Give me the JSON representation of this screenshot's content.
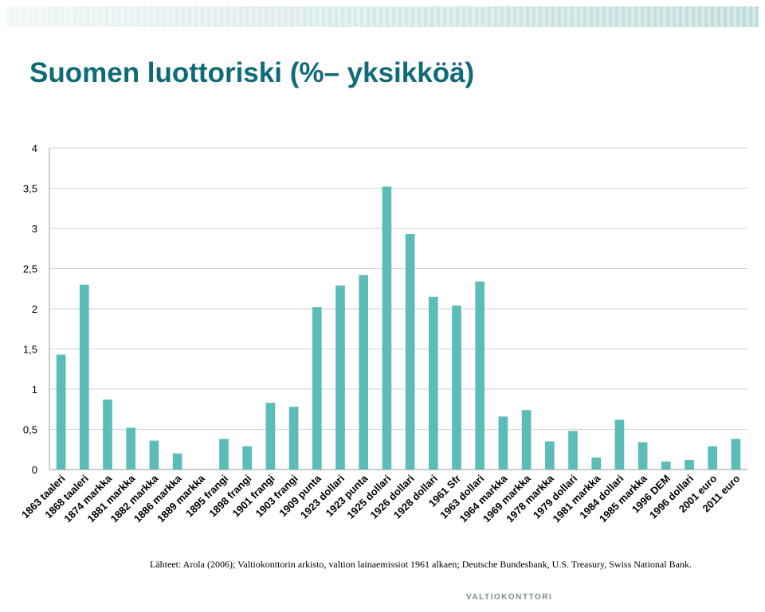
{
  "title": "Suomen luottoriski (%– yksikköä)",
  "source": "Lähteet: Arola (2006); Valtiokonttorin arkisto, valtion lainaemissiot 1961 alkaen; Deutsche Bundesbank, U.S. Treasury, Swiss National Bank.",
  "logo_text": "VALTIOKONTTORI",
  "colors": {
    "title": "#0f6b78",
    "bar": "#5bbcb8",
    "grid": "#d2d2d2",
    "band_light": "#e8f2f2",
    "band_dark": "#c4dedd"
  },
  "chart_data": {
    "type": "bar",
    "title": "",
    "xlabel": "",
    "ylabel": "",
    "ylim": [
      0,
      4
    ],
    "yticks": [
      "0",
      "0,5",
      "1",
      "1,5",
      "2",
      "2,5",
      "3",
      "3,5",
      "4"
    ],
    "grid": true,
    "legend": "none",
    "categories": [
      "1863 taaleri",
      "1868 taaleri",
      "1874 markka",
      "1881 markka",
      "1882 markka",
      "1886 markka",
      "1889 markka",
      "1895 frangi",
      "1898 frangi",
      "1901 frangi",
      "1903 frangi",
      "1909 punta",
      "1923 dollari",
      "1923 punta",
      "1925 dollari",
      "1926 dollari",
      "1928 dollari",
      "1961 Sfr",
      "1963 dollari",
      "1964 markka",
      "1969 markka",
      "1978 markka",
      "1979 dollari",
      "1981 markka",
      "1984 dollari",
      "1985 markka",
      "1996 DEM",
      "1996 dollari",
      "2001 euro",
      "2011 euro"
    ],
    "values": [
      1.43,
      2.3,
      0.87,
      0.52,
      0.36,
      0.2,
      0,
      0.38,
      0.29,
      0.83,
      0.78,
      2.02,
      2.29,
      2.42,
      3.52,
      2.93,
      2.15,
      2.04,
      2.34,
      0.66,
      0.74,
      0.35,
      0.48,
      0.15,
      0.62,
      0.34,
      0.1,
      0.12,
      0.29,
      0.38
    ]
  }
}
